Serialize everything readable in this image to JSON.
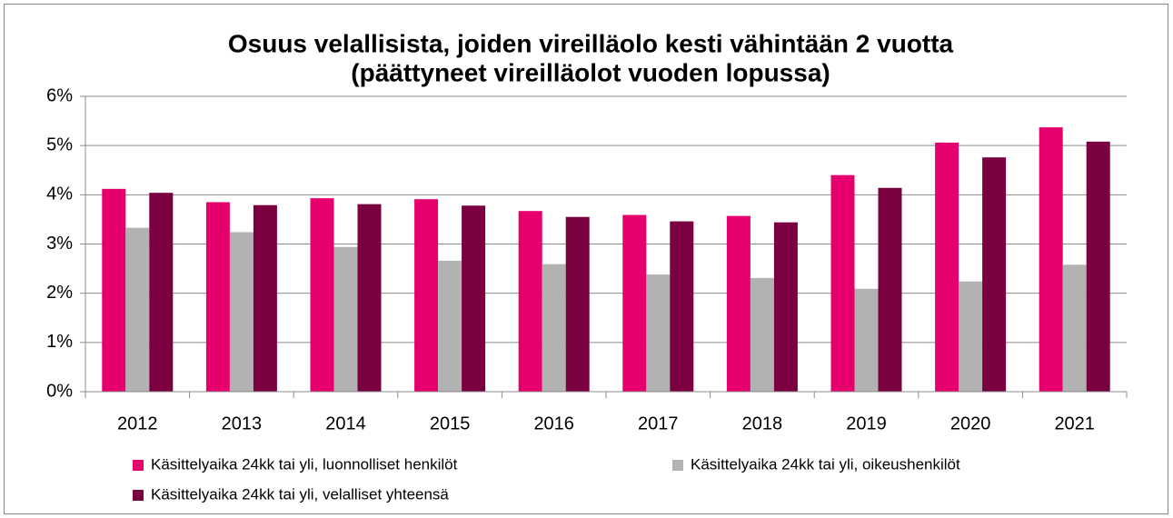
{
  "chart_data": {
    "type": "bar",
    "title": "Osuus velallisista, joiden vireilläolo kesti vähintään 2 vuotta",
    "subtitle": "(päättyneet vireilläolot vuoden lopussa)",
    "categories": [
      "2012",
      "2013",
      "2014",
      "2015",
      "2016",
      "2017",
      "2018",
      "2019",
      "2020",
      "2021"
    ],
    "series": [
      {
        "name": "Käsittelyaika 24kk tai yli, luonnolliset henkilöt",
        "color": "#e5006d",
        "values": [
          4.12,
          3.85,
          3.93,
          3.91,
          3.67,
          3.59,
          3.57,
          4.4,
          5.06,
          5.37
        ]
      },
      {
        "name": "Käsittelyaika 24kk tai yli, oikeushenkilöt",
        "color": "#b2b2b2",
        "values": [
          3.33,
          3.24,
          2.94,
          2.66,
          2.59,
          2.38,
          2.31,
          2.09,
          2.24,
          2.58
        ]
      },
      {
        "name": "Käsittelyaika 24kk tai yli, velalliset yhteensä",
        "color": "#7a0040",
        "values": [
          4.04,
          3.79,
          3.81,
          3.78,
          3.55,
          3.46,
          3.44,
          4.14,
          4.76,
          5.08
        ]
      }
    ],
    "ylim": [
      0,
      6
    ],
    "yticks": [
      {
        "value": 0,
        "label": "0%"
      },
      {
        "value": 1,
        "label": "1%"
      },
      {
        "value": 2,
        "label": "2%"
      },
      {
        "value": 3,
        "label": "3%"
      },
      {
        "value": 4,
        "label": "4%"
      },
      {
        "value": 5,
        "label": "5%"
      },
      {
        "value": 6,
        "label": "6%"
      }
    ],
    "grid": true
  }
}
